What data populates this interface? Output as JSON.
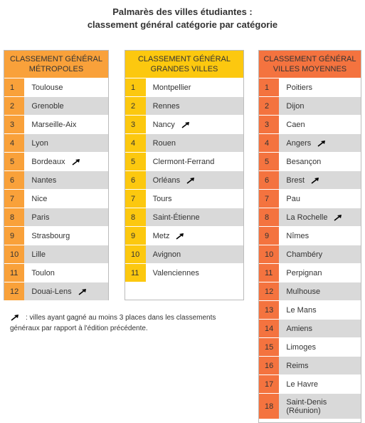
{
  "title": {
    "line1": "Palmarès des villes étudiantes :",
    "line2": "classement général catégorie par catégorie"
  },
  "columns": [
    {
      "header": {
        "line1": "CLASSEMENT GÉNÉRAL",
        "line2": "MÉTROPOLES"
      },
      "header_color": "#f9a13a",
      "rank_color": "#f9a13a",
      "rows": [
        {
          "rank": 1,
          "city": "Toulouse"
        },
        {
          "rank": 2,
          "city": "Grenoble"
        },
        {
          "rank": 3,
          "city": "Marseille-Aix"
        },
        {
          "rank": 4,
          "city": "Lyon"
        },
        {
          "rank": 5,
          "city": "Bordeaux",
          "arrow": true
        },
        {
          "rank": 6,
          "city": "Nantes"
        },
        {
          "rank": 7,
          "city": "Nice"
        },
        {
          "rank": 8,
          "city": "Paris"
        },
        {
          "rank": 9,
          "city": "Strasbourg"
        },
        {
          "rank": 10,
          "city": "Lille"
        },
        {
          "rank": 11,
          "city": "Toulon"
        },
        {
          "rank": 12,
          "city": "Douai-Lens",
          "arrow": true
        }
      ]
    },
    {
      "header": {
        "line1": "CLASSEMENT GÉNÉRAL",
        "line2": "GRANDES VILLES"
      },
      "header_color": "#fcc80f",
      "rank_color": "#fcc80f",
      "rows": [
        {
          "rank": 1,
          "city": "Montpellier"
        },
        {
          "rank": 2,
          "city": "Rennes"
        },
        {
          "rank": 3,
          "city": "Nancy",
          "arrow": true
        },
        {
          "rank": 4,
          "city": "Rouen"
        },
        {
          "rank": 5,
          "city": "Clermont-Ferrand"
        },
        {
          "rank": 6,
          "city": "Orléans",
          "arrow": true
        },
        {
          "rank": 7,
          "city": "Tours"
        },
        {
          "rank": 8,
          "city": "Saint-Étienne"
        },
        {
          "rank": 9,
          "city": "Metz",
          "arrow": true
        },
        {
          "rank": 10,
          "city": "Avignon"
        },
        {
          "rank": 11,
          "city": "Valenciennes"
        }
      ]
    },
    {
      "header": {
        "line1": "CLASSEMENT GÉNÉRAL",
        "line2": "VILLES MOYENNES"
      },
      "header_color": "#f4733f",
      "rank_color": "#f4733f",
      "rows": [
        {
          "rank": 1,
          "city": "Poitiers"
        },
        {
          "rank": 2,
          "city": "Dijon"
        },
        {
          "rank": 3,
          "city": "Caen"
        },
        {
          "rank": 4,
          "city": "Angers",
          "arrow": true
        },
        {
          "rank": 5,
          "city": "Besançon"
        },
        {
          "rank": 6,
          "city": "Brest",
          "arrow": true
        },
        {
          "rank": 7,
          "city": "Pau"
        },
        {
          "rank": 8,
          "city": "La Rochelle",
          "arrow": true
        },
        {
          "rank": 9,
          "city": "Nîmes"
        },
        {
          "rank": 10,
          "city": "Chambéry"
        },
        {
          "rank": 11,
          "city": "Perpignan"
        },
        {
          "rank": 12,
          "city": "Mulhouse"
        },
        {
          "rank": 13,
          "city": "Le Mans"
        },
        {
          "rank": 14,
          "city": "Amiens"
        },
        {
          "rank": 15,
          "city": "Limoges"
        },
        {
          "rank": 16,
          "city": "Reims"
        },
        {
          "rank": 17,
          "city": "Le Havre"
        },
        {
          "rank": 18,
          "city": "Saint-Denis (Réunion)"
        }
      ]
    }
  ],
  "legend": ": villes ayant gagné au moins 3 places dans les classements généraux par rapport à l'édition précédente."
}
